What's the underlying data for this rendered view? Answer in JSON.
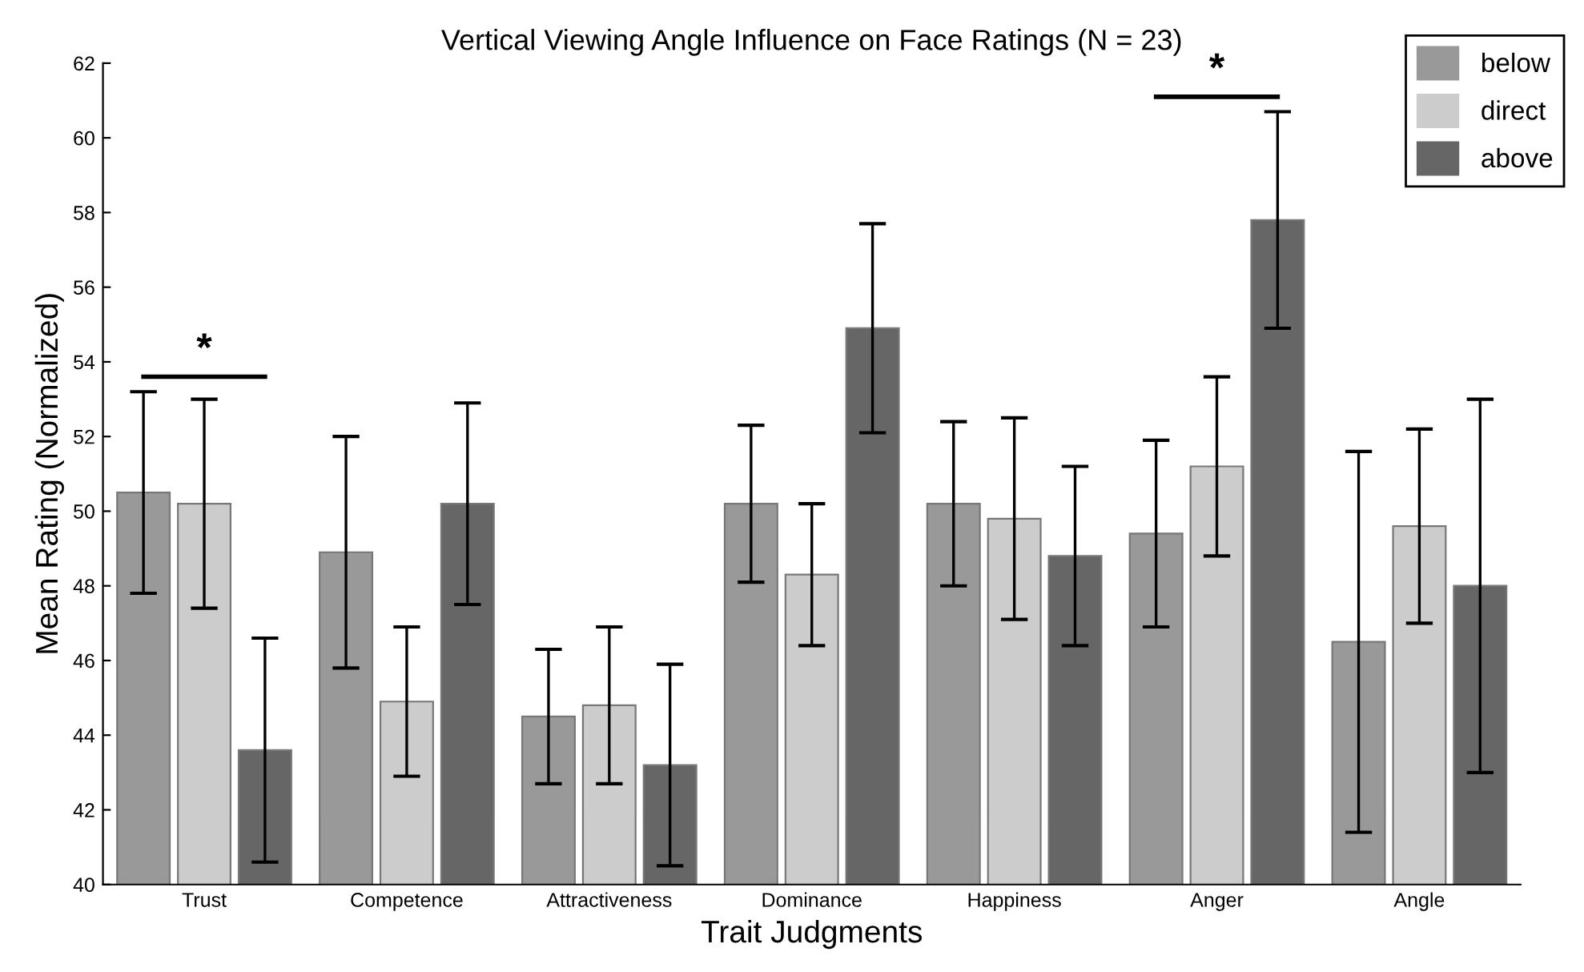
{
  "chart_data": {
    "type": "bar",
    "title": "Vertical Viewing Angle Influence on Face Ratings (N = 23)",
    "xlabel": "Trait Judgments",
    "ylabel": "Mean Rating (Normalized)",
    "categories": [
      "Trust",
      "Competence",
      "Attractiveness",
      "Dominance",
      "Happiness",
      "Anger",
      "Angle"
    ],
    "series": [
      {
        "name": "below",
        "color": "#999999",
        "values": [
          50.5,
          48.9,
          44.5,
          50.2,
          50.2,
          49.4,
          46.5
        ],
        "errors": [
          2.7,
          3.1,
          1.8,
          2.1,
          2.2,
          2.5,
          5.1
        ]
      },
      {
        "name": "direct",
        "color": "#cccccc",
        "values": [
          50.2,
          44.9,
          44.8,
          48.3,
          49.8,
          51.2,
          49.6
        ],
        "errors": [
          2.8,
          2.0,
          2.1,
          1.9,
          2.7,
          2.4,
          2.6
        ]
      },
      {
        "name": "above",
        "color": "#666666",
        "values": [
          43.6,
          50.2,
          43.2,
          54.9,
          48.8,
          57.8,
          48.0
        ],
        "errors": [
          3.0,
          2.7,
          2.7,
          2.8,
          2.4,
          2.9,
          5.0
        ]
      }
    ],
    "ylim": [
      40,
      62
    ],
    "yticks": [
      40,
      42,
      44,
      46,
      48,
      50,
      52,
      54,
      56,
      58,
      60,
      62
    ],
    "annotations": [
      "*",
      "*"
    ],
    "legend": "top right",
    "grid": false
  }
}
